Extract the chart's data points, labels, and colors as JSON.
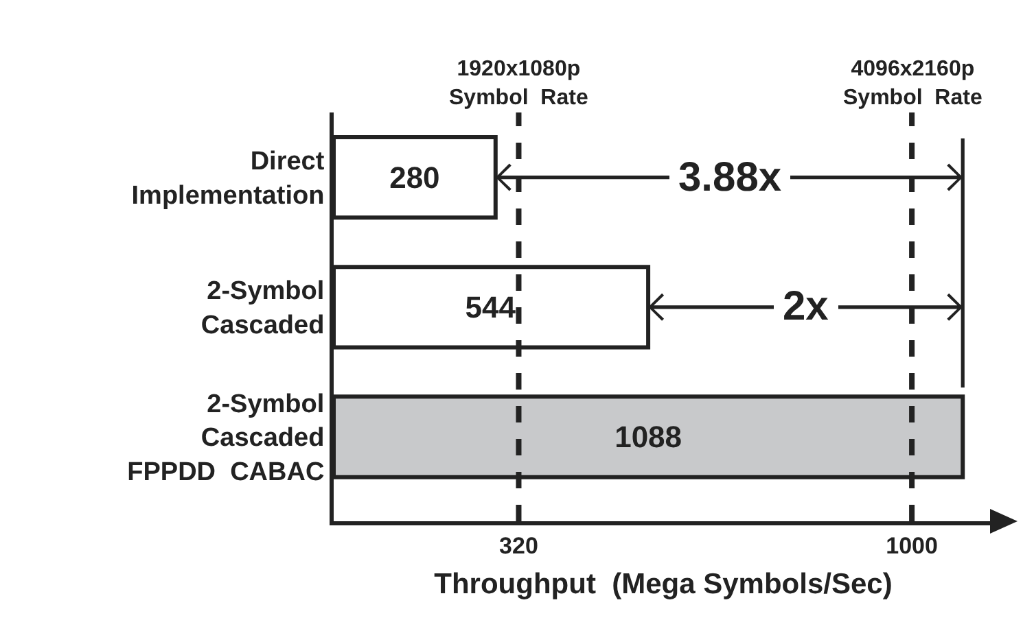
{
  "chart_data": {
    "type": "bar",
    "orientation": "horizontal",
    "xlabel": "Throughput  (Mega Symbols/Sec)",
    "categories": [
      "Direct\nImplementation",
      "2-Symbol\nCascaded",
      "2-Symbol\nCascaded\nFPPDD  CABAC"
    ],
    "values": [
      280,
      544,
      1088
    ],
    "colors": [
      "#ffffff",
      "#ffffff",
      "#c8c9cb"
    ],
    "data_labels": true,
    "xlim": [
      0,
      1140
    ],
    "xticks": [
      320,
      1000
    ],
    "ref_lines": [
      {
        "axis": "x",
        "value": 320,
        "label": "1920x1080p\nSymbol  Rate",
        "line_style": "dashed"
      },
      {
        "axis": "x",
        "value": 1000,
        "label": "4096x2160p\nSymbol  Rate",
        "line_style": "dashed"
      }
    ],
    "annotations": [
      "3.88x",
      "2x"
    ],
    "grid": false
  }
}
